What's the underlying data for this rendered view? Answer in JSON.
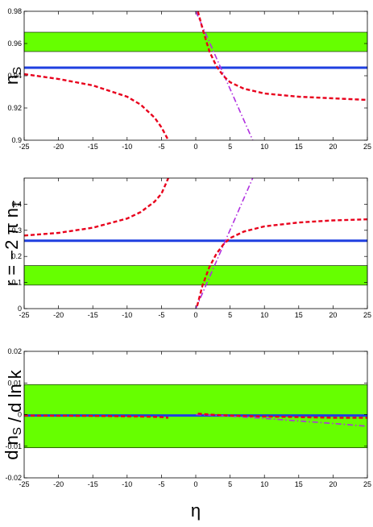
{
  "colors": {
    "band": "#66ff00",
    "constant": "#1f3fe0",
    "red_curve": "#e8001c",
    "magenta_curve": "#b030e0"
  },
  "chart_data": [
    {
      "type": "line",
      "ylabel": "n_S",
      "xlabel": "",
      "xlim": [
        -25,
        25
      ],
      "ylim": [
        0.9,
        0.98
      ],
      "xticks": [
        "-25",
        "-20",
        "-15",
        "-10",
        "-5",
        "0",
        "5",
        "10",
        "15",
        "20",
        "25"
      ],
      "yticks": [
        "0.9",
        "0.92",
        "0.94",
        "0.96",
        "0.98"
      ],
      "band": [
        0.955,
        0.967
      ],
      "constant": 0.945,
      "red_curve_neg": {
        "x": [
          -25,
          -20,
          -15,
          -10,
          -8,
          -6,
          -5,
          -4.5,
          -4
        ],
        "y": [
          0.941,
          0.938,
          0.934,
          0.927,
          0.922,
          0.914,
          0.908,
          0.904,
          0.9
        ]
      },
      "red_curve_pos": {
        "x": [
          0.3,
          1,
          2,
          3,
          4,
          5,
          7,
          10,
          15,
          20,
          25
        ],
        "y": [
          0.98,
          0.969,
          0.955,
          0.946,
          0.94,
          0.936,
          0.932,
          0.929,
          0.927,
          0.926,
          0.925
        ]
      },
      "magenta_line": {
        "x": [
          0,
          8.3
        ],
        "y": [
          0.98,
          0.9
        ]
      }
    },
    {
      "type": "line",
      "ylabel": "r = −2 π n_T",
      "xlabel": "",
      "xlim": [
        -25,
        25
      ],
      "ylim": [
        0,
        0.5
      ],
      "xticks": [
        "-25",
        "-20",
        "-15",
        "-10",
        "-5",
        "0",
        "5",
        "10",
        "15",
        "20",
        "25"
      ],
      "yticks": [
        "0",
        "0.1",
        "0.2",
        "0.3",
        "0.4"
      ],
      "band": [
        0.09,
        0.165
      ],
      "constant": 0.26,
      "red_curve_neg": {
        "x": [
          -25,
          -20,
          -15,
          -10,
          -8,
          -6,
          -5,
          -4.5,
          -4
        ],
        "y": [
          0.28,
          0.29,
          0.31,
          0.345,
          0.37,
          0.41,
          0.44,
          0.47,
          0.5
        ]
      },
      "red_curve_pos": {
        "x": [
          0.2,
          1,
          2,
          3,
          4,
          5,
          7,
          10,
          15,
          20,
          25
        ],
        "y": [
          0.01,
          0.09,
          0.16,
          0.21,
          0.245,
          0.27,
          0.295,
          0.315,
          0.33,
          0.338,
          0.342
        ]
      },
      "magenta_line": {
        "x": [
          0,
          8.3
        ],
        "y": [
          0,
          0.5
        ]
      }
    },
    {
      "type": "line",
      "ylabel": "d n_S / d ln k",
      "xlabel": "η",
      "xlim": [
        -25,
        25
      ],
      "ylim": [
        -0.02,
        0.02
      ],
      "xticks": [
        "-25",
        "-20",
        "-15",
        "-10",
        "-5",
        "0",
        "5",
        "10",
        "15",
        "20",
        "25"
      ],
      "yticks": [
        "-0.02",
        "-0.01",
        "0",
        "0.01",
        "0.02"
      ],
      "band": [
        -0.0105,
        0.0095
      ],
      "constant": -0.0003,
      "red_curve_neg": {
        "x": [
          -25,
          -15,
          -8,
          -5,
          -4
        ],
        "y": [
          -0.0003,
          -0.0004,
          -0.0006,
          -0.0008,
          -0.001
        ]
      },
      "red_curve_pos": {
        "x": [
          0.3,
          2,
          5,
          10,
          15,
          20,
          25
        ],
        "y": [
          0.0003,
          0,
          -0.0003,
          -0.0006,
          -0.0008,
          -0.001,
          -0.001
        ]
      },
      "magenta_line": {
        "x": [
          0,
          5,
          10,
          15,
          20,
          25
        ],
        "y": [
          0,
          -0.0005,
          -0.0012,
          -0.002,
          -0.0028,
          -0.0037
        ]
      }
    }
  ]
}
